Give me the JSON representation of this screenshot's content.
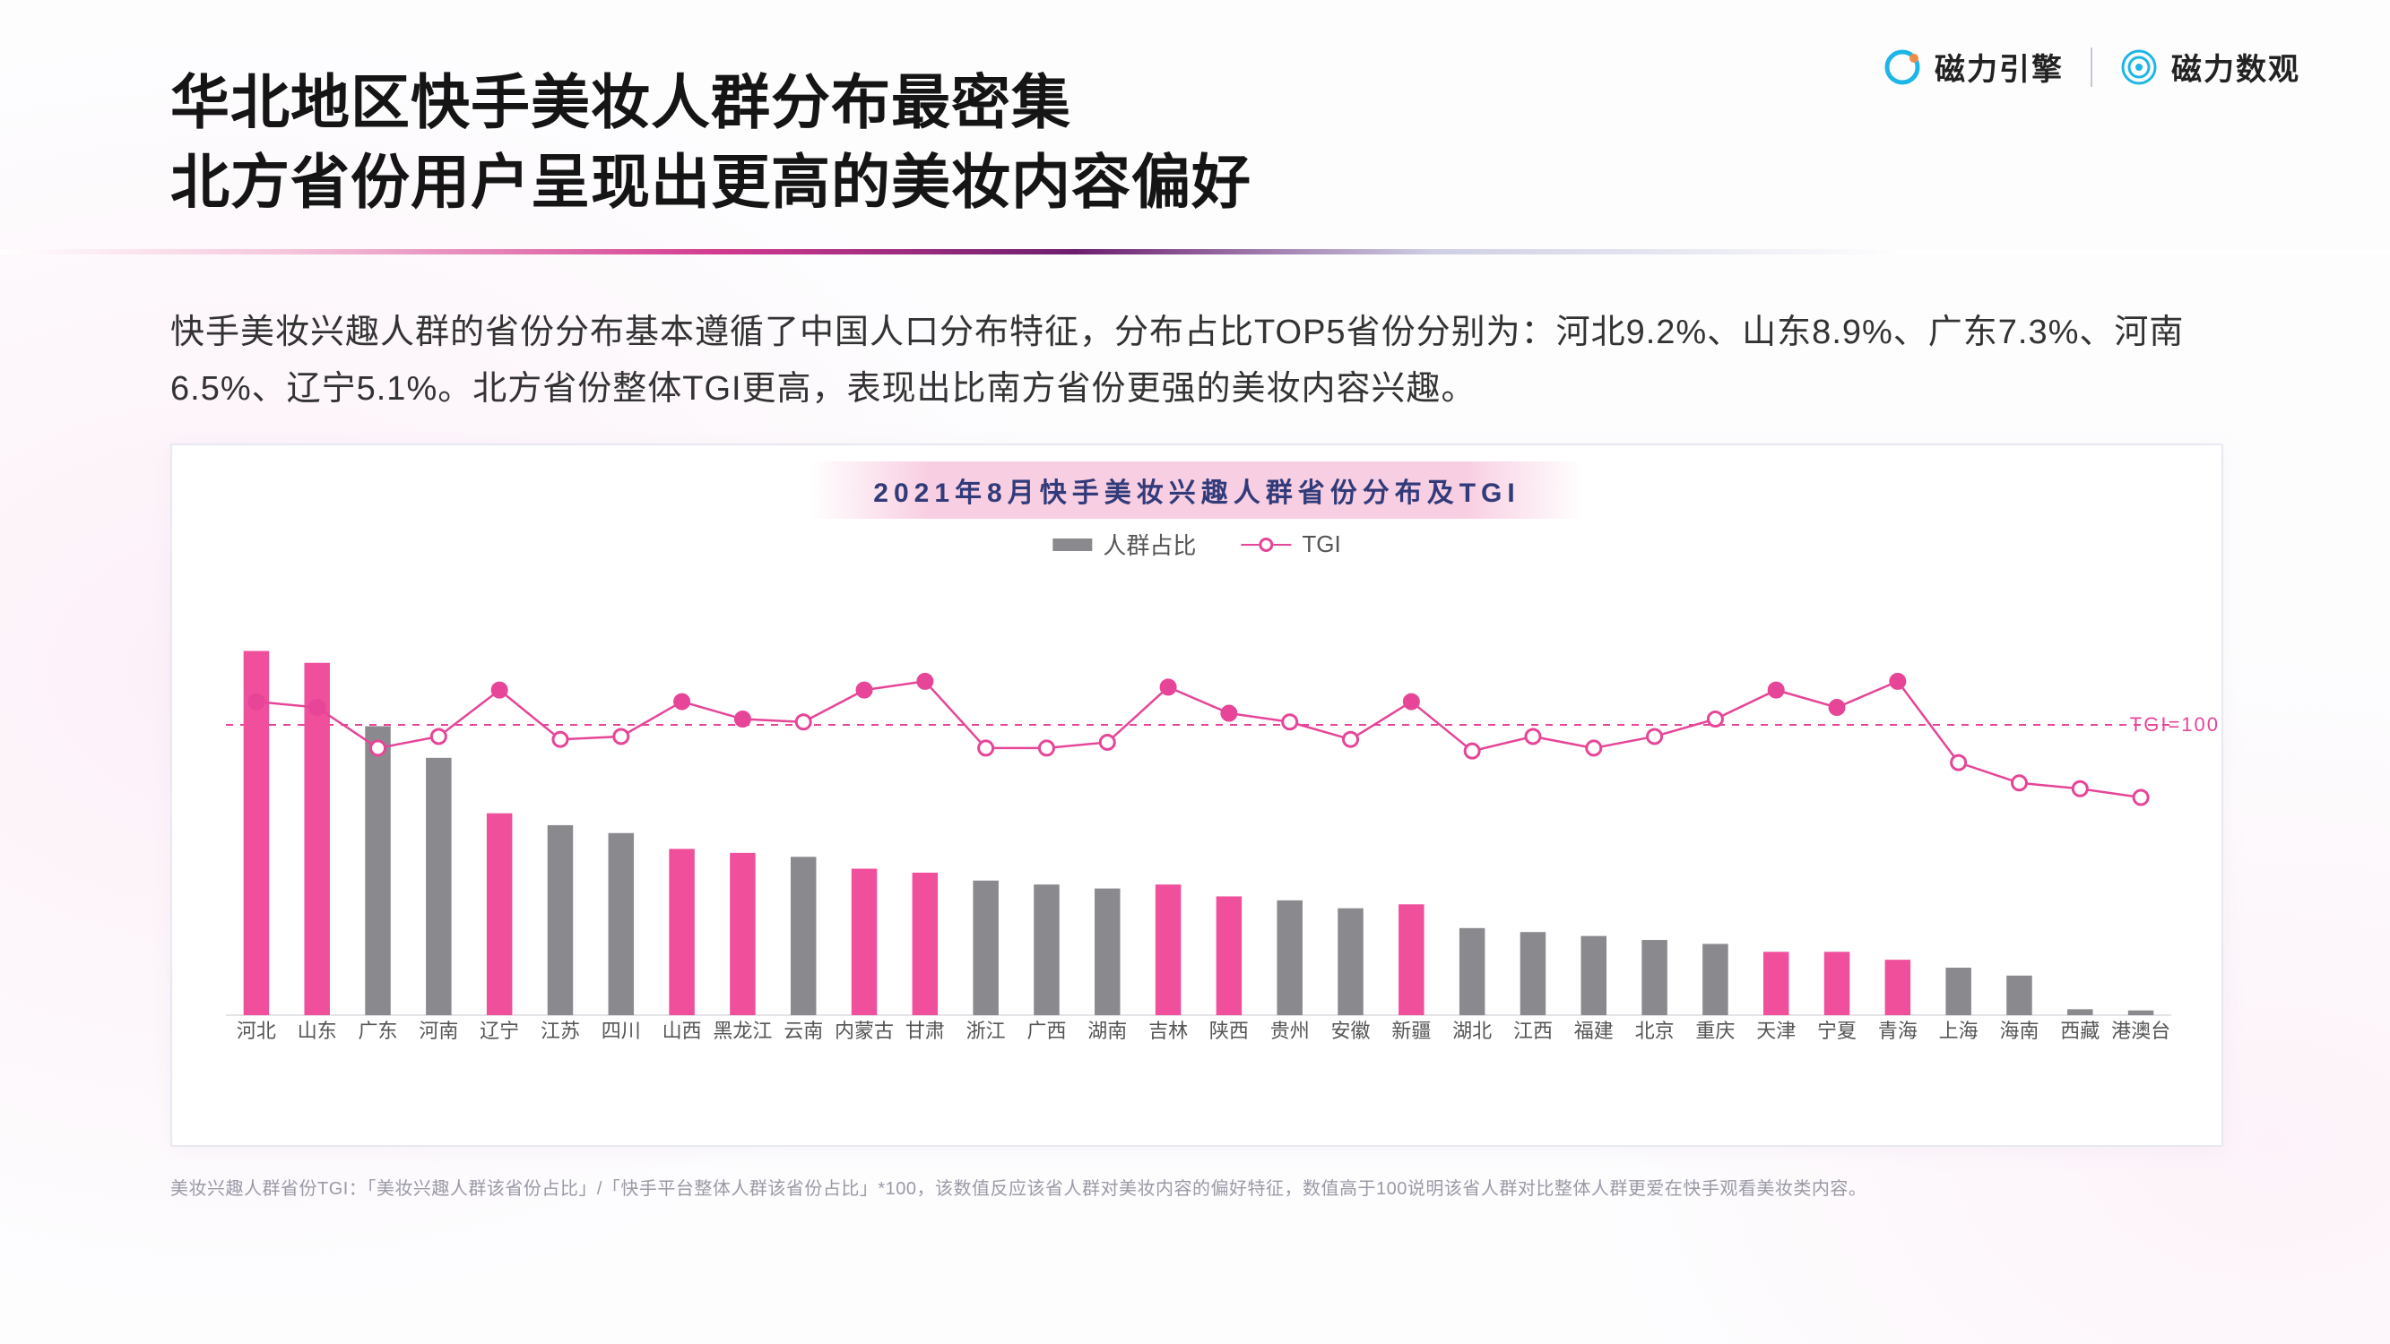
{
  "logos": {
    "left": {
      "text": "磁力引擎",
      "icon_color": "#1eb6e6"
    },
    "right": {
      "text": "磁力数观",
      "icon_color": "#1eb6e6"
    }
  },
  "heading": {
    "line1": "华北地区快手美妆人群分布最密集",
    "line2": "北方省份用户呈现出更高的美妆内容偏好"
  },
  "description": "快手美妆兴趣人群的省份分布基本遵循了中国人口分布特征，分布占比TOP5省份分别为：河北9.2%、山东8.9%、广东7.3%、河南6.5%、辽宁5.1%。北方省份整体TGI更高，表现出比南方省份更强的美妆内容兴趣。",
  "chart": {
    "title": "2021年8月快手美妆兴趣人群省份分布及TGI",
    "legend": {
      "bar": "人群占比",
      "line": "TGI"
    },
    "tgi_ref_label": "TGI=100",
    "colors": {
      "bar_default": "#8a8a8e",
      "bar_highlight": "#ef4f9b",
      "line": "#e64598",
      "marker_fill_default": "#ffffff",
      "marker_fill_highlight": "#e64598",
      "ref_line": "#e64598",
      "grid_border": "#e8e8f0",
      "background": "#ffffff",
      "axis_text": "#555555",
      "title_text": "#323B7A"
    },
    "bar_ylim": [
      0,
      11
    ],
    "tgi_ylim": [
      0,
      150
    ],
    "tgi_ref": 100,
    "bar_width_ratio": 0.42,
    "marker_radius": 8,
    "line_width": 2.5,
    "categories": [
      "河北",
      "山东",
      "广东",
      "河南",
      "辽宁",
      "江苏",
      "四川",
      "山西",
      "黑龙江",
      "云南",
      "内蒙古",
      "甘肃",
      "浙江",
      "广西",
      "湖南",
      "吉林",
      "陕西",
      "贵州",
      "安徽",
      "新疆",
      "湖北",
      "江西",
      "福建",
      "北京",
      "重庆",
      "天津",
      "宁夏",
      "青海",
      "上海",
      "海南",
      "西藏",
      "港澳台"
    ],
    "bar_values": [
      9.2,
      8.9,
      7.3,
      6.5,
      5.1,
      4.8,
      4.6,
      4.2,
      4.1,
      4.0,
      3.7,
      3.6,
      3.4,
      3.3,
      3.2,
      3.3,
      3.0,
      2.9,
      2.7,
      2.8,
      2.2,
      2.1,
      2.0,
      1.9,
      1.8,
      1.6,
      1.6,
      1.4,
      1.2,
      1.0,
      0.15,
      0.12
    ],
    "highlight_idx": [
      0,
      1,
      4,
      7,
      8,
      10,
      11,
      15,
      16,
      19,
      25,
      26,
      27
    ],
    "tgi_values": [
      108,
      106,
      92,
      96,
      112,
      95,
      96,
      108,
      102,
      101,
      112,
      115,
      92,
      92,
      94,
      113,
      104,
      101,
      95,
      108,
      91,
      96,
      92,
      96,
      102,
      112,
      106,
      115,
      87,
      80,
      78,
      75
    ]
  },
  "footnote": "美妆兴趣人群省份TGI：「美妆兴趣人群该省份占比」/「快手平台整体人群该省份占比」*100，该数值反应该省人群对美妆内容的偏好特征，数值高于100说明该省人群对比整体人群更爱在快手观看美妆类内容。"
}
